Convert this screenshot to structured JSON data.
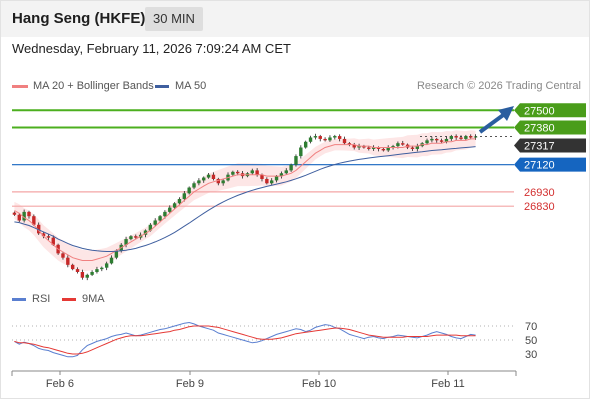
{
  "header": {
    "title": "Hang Seng (HKFE)",
    "timeframe": "30 MIN"
  },
  "date_line": "Wednesday, February 11, 2026 7:09:24 AM CET",
  "legend": {
    "ma20": "MA 20 + Bollinger Bands",
    "ma50": "MA 50",
    "credit": "Research © 2026 Trading Central"
  },
  "rsi_legend": {
    "rsi": "RSI",
    "ma": "9MA"
  },
  "colors": {
    "up": "#2e7d32",
    "down": "#c62828",
    "resistance": "#4caf1f",
    "support": "#f4a6a6",
    "pivot": "#1565c0",
    "current": "#333333",
    "ma20": "#f08080",
    "ma50": "#3f5f9f",
    "band_fill": "#fde0e0",
    "rsi": "#5a7fd0",
    "rsi_ma": "#e53935",
    "arrow": "#2a5d9f"
  },
  "chart_data": [
    {
      "type": "candlestick",
      "ylim": [
        26300,
        27600
      ],
      "x_ticks": [
        "Feb 6",
        "Feb 9",
        "Feb 10",
        "Feb 11"
      ],
      "levels": [
        {
          "kind": "resistance",
          "value": 27500,
          "label": "27500"
        },
        {
          "kind": "resistance",
          "value": 27380,
          "label": "27380"
        },
        {
          "kind": "current",
          "value": 27317,
          "label": "27317"
        },
        {
          "kind": "pivot",
          "value": 27120,
          "label": "27120"
        },
        {
          "kind": "support",
          "value": 26930,
          "label": "26930"
        },
        {
          "kind": "support",
          "value": 26830,
          "label": "26830"
        }
      ],
      "closes": [
        26770,
        26730,
        26790,
        26760,
        26700,
        26640,
        26620,
        26610,
        26560,
        26500,
        26470,
        26420,
        26390,
        26370,
        26330,
        26350,
        26370,
        26390,
        26400,
        26430,
        26470,
        26520,
        26560,
        26600,
        26620,
        26610,
        26630,
        26660,
        26700,
        26730,
        26760,
        26790,
        26820,
        26850,
        26880,
        26920,
        26960,
        26990,
        27010,
        27030,
        27050,
        27020,
        26990,
        27010,
        27050,
        27070,
        27060,
        27040,
        27060,
        27080,
        27050,
        27020,
        26990,
        27010,
        27040,
        27060,
        27080,
        27120,
        27180,
        27240,
        27280,
        27310,
        27320,
        27300,
        27290,
        27310,
        27320,
        27300,
        27270,
        27260,
        27240,
        27250,
        27240,
        27230,
        27240,
        27230,
        27220,
        27240,
        27250,
        27270,
        27260,
        27240,
        27230,
        27250,
        27270,
        27290,
        27300,
        27290,
        27280,
        27300,
        27320,
        27310,
        27300,
        27320,
        27310,
        27317
      ],
      "ma20": [
        26800,
        26780,
        26750,
        26730,
        26700,
        26660,
        26620,
        26590,
        26560,
        26530,
        26510,
        26490,
        26470,
        26460,
        26450,
        26450,
        26450,
        26460,
        26470,
        26480,
        26500,
        26520,
        26540,
        26560,
        26580,
        26600,
        26620,
        26640,
        26660,
        26690,
        26720,
        26750,
        26780,
        26810,
        26840,
        26870,
        26900,
        26930,
        26950,
        26970,
        26990,
        27000,
        27010,
        27020,
        27030,
        27040,
        27050,
        27050,
        27050,
        27050,
        27050,
        27050,
        27040,
        27040,
        27040,
        27040,
        27050,
        27060,
        27080,
        27110,
        27140,
        27170,
        27200,
        27220,
        27240,
        27250,
        27260,
        27260,
        27260,
        27260,
        27260,
        27250,
        27250,
        27250,
        27240,
        27240,
        27240,
        27240,
        27240,
        27240,
        27240,
        27250,
        27250,
        27250,
        27260,
        27260,
        27270,
        27270,
        27270,
        27280,
        27280,
        27290,
        27290,
        27290,
        27300,
        27300
      ],
      "ma50": [
        26720,
        26715,
        26705,
        26695,
        26680,
        26665,
        26650,
        26635,
        26620,
        26600,
        26585,
        26570,
        26555,
        26545,
        26535,
        26528,
        26522,
        26518,
        26515,
        26513,
        26513,
        26515,
        26518,
        26522,
        26528,
        26535,
        26545,
        26555,
        26567,
        26580,
        26595,
        26610,
        26628,
        26647,
        26668,
        26690,
        26712,
        26735,
        26758,
        26780,
        26802,
        26822,
        26842,
        26860,
        26876,
        26891,
        26905,
        26918,
        26930,
        26941,
        26951,
        26960,
        26968,
        26976,
        26984,
        26992,
        27000,
        27010,
        27021,
        27033,
        27046,
        27060,
        27074,
        27088,
        27100,
        27111,
        27121,
        27130,
        27138,
        27145,
        27151,
        27157,
        27162,
        27167,
        27171,
        27175,
        27179,
        27183,
        27187,
        27191,
        27195,
        27199,
        27203,
        27207,
        27211,
        27215,
        27219,
        27222,
        27225,
        27228,
        27231,
        27234,
        27237,
        27240,
        27243,
        27246
      ]
    },
    {
      "type": "line",
      "ylim": [
        10,
        90
      ],
      "y_ticks": [
        70,
        50,
        30
      ],
      "series_names": [
        "RSI",
        "9MA"
      ],
      "rsi": [
        48,
        44,
        47,
        45,
        42,
        38,
        36,
        35,
        32,
        30,
        28,
        26,
        26,
        28,
        36,
        42,
        45,
        48,
        50,
        52,
        55,
        57,
        58,
        60,
        58,
        56,
        57,
        59,
        61,
        63,
        65,
        66,
        68,
        70,
        72,
        74,
        75,
        73,
        70,
        68,
        66,
        64,
        60,
        58,
        56,
        54,
        52,
        50,
        48,
        46,
        47,
        49,
        52,
        55,
        58,
        60,
        62,
        64,
        66,
        65,
        62,
        64,
        68,
        70,
        72,
        71,
        68,
        66,
        62,
        58,
        56,
        54,
        52,
        54,
        55,
        53,
        52,
        54,
        55,
        57,
        56,
        55,
        54,
        53,
        55,
        57,
        60,
        62,
        60,
        58,
        55,
        53,
        52,
        55,
        58,
        57
      ],
      "rsi_ma": [
        48,
        46,
        46,
        45,
        44,
        42,
        40,
        39,
        37,
        35,
        33,
        31,
        30,
        30,
        31,
        33,
        36,
        39,
        42,
        45,
        48,
        51,
        53,
        55,
        56,
        56,
        56,
        57,
        58,
        59,
        60,
        61,
        62,
        64,
        65,
        67,
        69,
        70,
        70,
        70,
        70,
        69,
        68,
        66,
        64,
        62,
        60,
        58,
        56,
        54,
        52,
        51,
        51,
        51,
        52,
        53,
        55,
        57,
        59,
        60,
        61,
        62,
        63,
        64,
        65,
        66,
        67,
        67,
        66,
        65,
        63,
        61,
        59,
        57,
        56,
        55,
        54,
        54,
        54,
        54,
        54,
        55,
        55,
        55,
        55,
        55,
        56,
        57,
        57,
        57,
        57,
        57,
        56,
        56,
        56,
        56
      ]
    }
  ]
}
